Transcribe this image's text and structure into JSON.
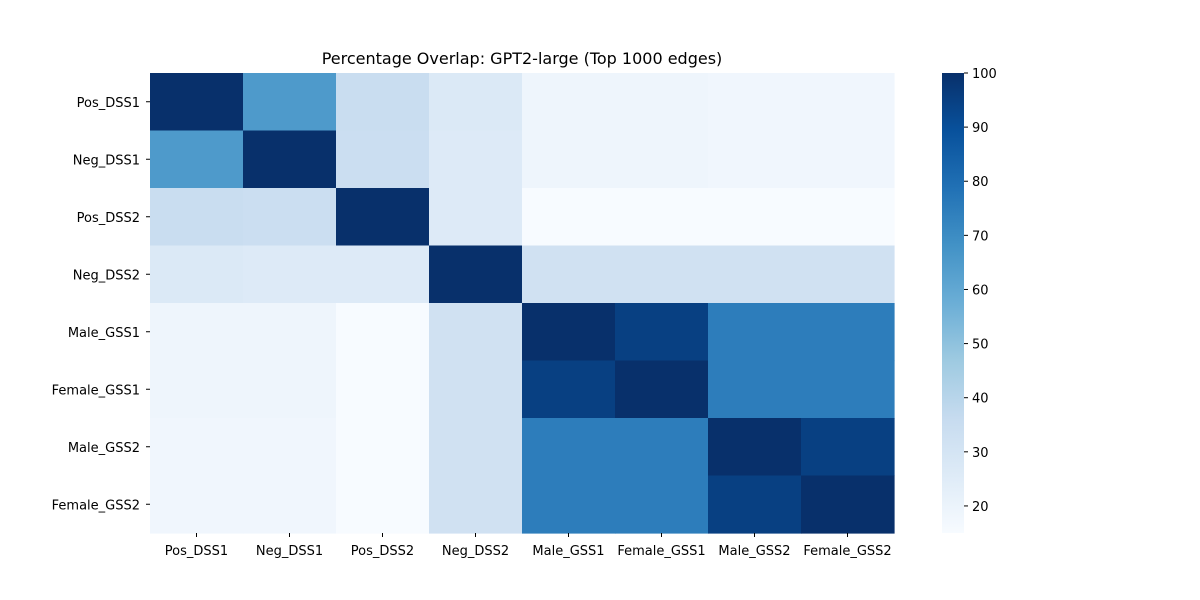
{
  "chart_data": {
    "type": "heatmap",
    "title": "Percentage Overlap: GPT2-large (Top 1000 edges)",
    "xlabel": "",
    "ylabel": "",
    "x_categories": [
      "Pos_DSS1",
      "Neg_DSS1",
      "Pos_DSS2",
      "Neg_DSS2",
      "Male_GSS1",
      "Female_GSS1",
      "Male_GSS2",
      "Female_GSS2"
    ],
    "y_categories": [
      "Pos_DSS1",
      "Neg_DSS1",
      "Pos_DSS2",
      "Neg_DSS2",
      "Male_GSS1",
      "Female_GSS1",
      "Male_GSS2",
      "Female_GSS2"
    ],
    "values": [
      [
        100,
        65,
        35,
        27,
        19,
        19,
        18,
        18
      ],
      [
        65,
        100,
        34,
        26,
        19,
        19,
        18,
        18
      ],
      [
        35,
        34,
        100,
        26,
        15,
        15,
        15,
        15
      ],
      [
        27,
        26,
        26,
        100,
        32,
        32,
        32,
        32
      ],
      [
        19,
        19,
        15,
        32,
        100,
        95,
        75,
        75
      ],
      [
        19,
        19,
        15,
        32,
        95,
        100,
        75,
        75
      ],
      [
        18,
        18,
        15,
        32,
        75,
        75,
        100,
        95
      ],
      [
        18,
        18,
        15,
        32,
        75,
        75,
        95,
        100
      ]
    ],
    "colorbar": {
      "colormap": "Blues",
      "range": [
        15,
        100
      ],
      "ticks": [
        "20",
        "30",
        "40",
        "50",
        "60",
        "70",
        "80",
        "90",
        "100"
      ]
    }
  }
}
